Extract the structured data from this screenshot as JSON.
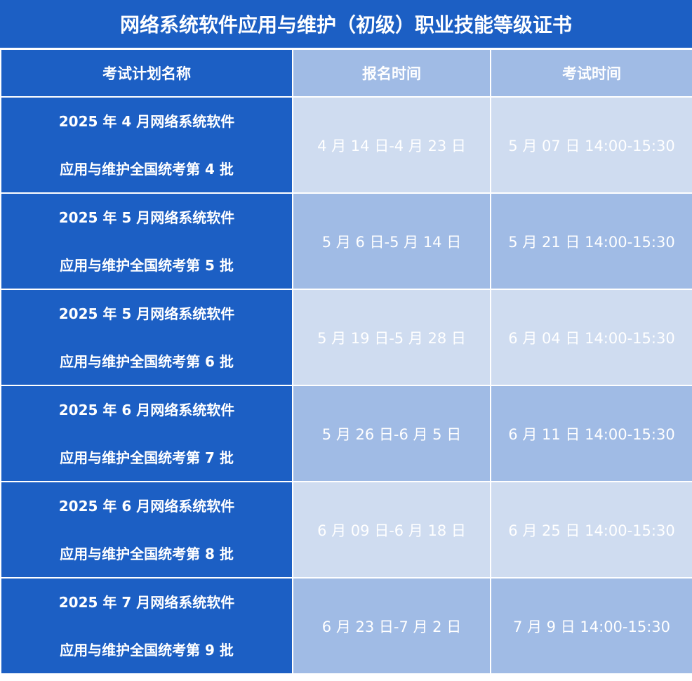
{
  "title": "网络系统软件应用与维护（初级）职业技能等级证书",
  "headers": [
    "考试计划名称",
    "报名时间",
    "考试时间"
  ],
  "rows": [
    {
      "name_line1": "2025 年 4 月网络系统软件",
      "name_line2": "应用与维护全国统考第 4 批",
      "registration": "4 月 14 日-4 月 23 日",
      "exam": "5 月 07 日  14:00-15:30"
    },
    {
      "name_line1": "2025 年 5 月网络系统软件",
      "name_line2": "应用与维护全国统考第 5 批",
      "registration": "5 月 6 日-5 月 14 日",
      "exam": "5 月 21 日  14:00-15:30"
    },
    {
      "name_line1": "2025 年 5 月网络系统软件",
      "name_line2": "应用与维护全国统考第 6 批",
      "registration": "5 月 19 日-5 月 28 日",
      "exam": "6 月 04 日  14:00-15:30"
    },
    {
      "name_line1": "2025 年 6 月网络系统软件",
      "name_line2": "应用与维护全国统考第 7 批",
      "registration": "5 月 26 日-6 月 5 日",
      "exam": "6 月 11 日  14:00-15:30"
    },
    {
      "name_line1": "2025 年 6 月网络系统软件",
      "name_line2": "应用与维护全国统考第 8 批",
      "registration": "6 月 09 日-6 月 18 日",
      "exam": "6 月 25 日  14:00-15:30"
    },
    {
      "name_line1": "2025 年 7 月网络系统软件",
      "name_line2": "应用与维护全国统考第 9 批",
      "registration": "6 月 23 日-7 月 2 日",
      "exam": "7 月 9 日  14:00-15:30"
    }
  ],
  "colors": {
    "dark": "#1c5fc4",
    "mid": "#a0bbe5",
    "light": "#cfdcf0"
  }
}
